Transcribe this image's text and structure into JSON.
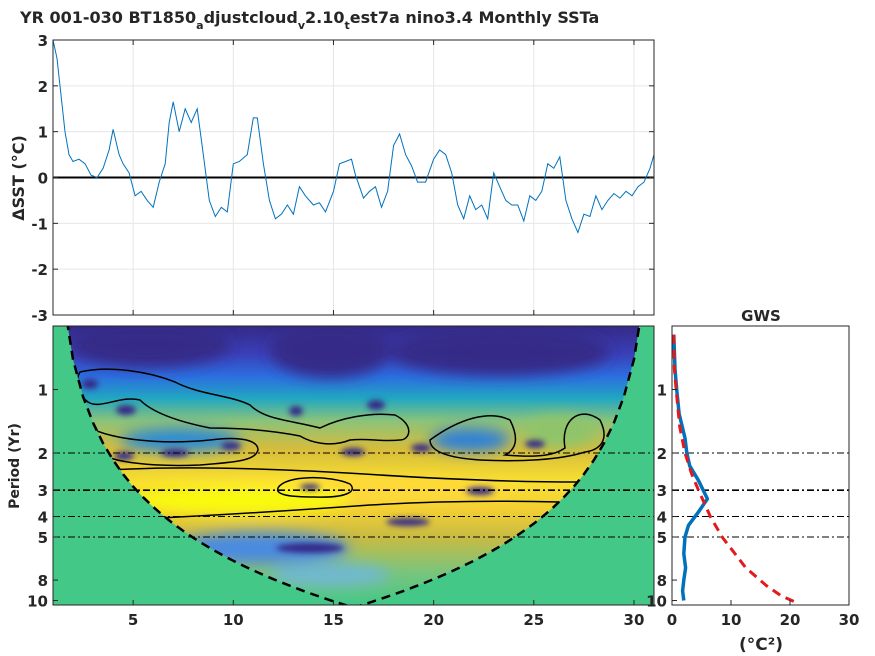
{
  "figure": {
    "title_parts": [
      "YR 001-030 BT1850",
      "a",
      "djustcloud",
      "v",
      "2.10",
      "t",
      "est7a nino3.4 Monthly SSTa"
    ]
  },
  "chart_data": [
    {
      "type": "line",
      "name": "timeseries",
      "ylabel": "ΔSST (°C)",
      "ylim": [
        -3,
        3
      ],
      "xlim": [
        1,
        31
      ],
      "yticks": [
        "-3",
        "-2",
        "-1",
        "0",
        "1",
        "2",
        "3"
      ],
      "xticks": [
        5,
        10,
        15,
        20,
        25,
        30
      ],
      "grid": true,
      "zero_line": true,
      "color": "#0072BD",
      "points": [
        [
          1.0,
          3.0
        ],
        [
          1.2,
          2.6
        ],
        [
          1.4,
          1.8
        ],
        [
          1.6,
          1.0
        ],
        [
          1.8,
          0.5
        ],
        [
          2.0,
          0.35
        ],
        [
          2.3,
          0.4
        ],
        [
          2.6,
          0.3
        ],
        [
          2.9,
          0.05
        ],
        [
          3.2,
          0.0
        ],
        [
          3.5,
          0.2
        ],
        [
          3.8,
          0.6
        ],
        [
          4.0,
          1.05
        ],
        [
          4.3,
          0.5
        ],
        [
          4.5,
          0.3
        ],
        [
          4.8,
          0.1
        ],
        [
          5.1,
          -0.4
        ],
        [
          5.4,
          -0.3
        ],
        [
          5.7,
          -0.5
        ],
        [
          6.0,
          -0.65
        ],
        [
          6.3,
          -0.1
        ],
        [
          6.6,
          0.3
        ],
        [
          6.8,
          1.2
        ],
        [
          7.0,
          1.65
        ],
        [
          7.3,
          1.0
        ],
        [
          7.6,
          1.5
        ],
        [
          7.9,
          1.2
        ],
        [
          8.2,
          1.5
        ],
        [
          8.5,
          0.5
        ],
        [
          8.8,
          -0.5
        ],
        [
          9.1,
          -0.85
        ],
        [
          9.4,
          -0.65
        ],
        [
          9.7,
          -0.75
        ],
        [
          10.0,
          0.3
        ],
        [
          10.3,
          0.35
        ],
        [
          10.7,
          0.5
        ],
        [
          11.0,
          1.3
        ],
        [
          11.2,
          1.3
        ],
        [
          11.5,
          0.3
        ],
        [
          11.8,
          -0.5
        ],
        [
          12.1,
          -0.9
        ],
        [
          12.4,
          -0.8
        ],
        [
          12.7,
          -0.6
        ],
        [
          13.0,
          -0.8
        ],
        [
          13.3,
          -0.2
        ],
        [
          13.6,
          -0.4
        ],
        [
          14.0,
          -0.6
        ],
        [
          14.3,
          -0.55
        ],
        [
          14.6,
          -0.75
        ],
        [
          15.0,
          -0.3
        ],
        [
          15.3,
          0.3
        ],
        [
          15.6,
          0.35
        ],
        [
          15.9,
          0.4
        ],
        [
          16.1,
          0.05
        ],
        [
          16.5,
          -0.45
        ],
        [
          16.8,
          -0.3
        ],
        [
          17.1,
          -0.2
        ],
        [
          17.4,
          -0.65
        ],
        [
          17.7,
          -0.3
        ],
        [
          18.0,
          0.7
        ],
        [
          18.3,
          0.95
        ],
        [
          18.6,
          0.5
        ],
        [
          18.9,
          0.25
        ],
        [
          19.2,
          -0.1
        ],
        [
          19.6,
          -0.1
        ],
        [
          20.0,
          0.4
        ],
        [
          20.3,
          0.6
        ],
        [
          20.6,
          0.5
        ],
        [
          20.9,
          0.1
        ],
        [
          21.2,
          -0.6
        ],
        [
          21.5,
          -0.9
        ],
        [
          21.8,
          -0.4
        ],
        [
          22.1,
          -0.7
        ],
        [
          22.4,
          -0.6
        ],
        [
          22.7,
          -0.9
        ],
        [
          23.0,
          0.1
        ],
        [
          23.3,
          -0.2
        ],
        [
          23.6,
          -0.5
        ],
        [
          23.9,
          -0.6
        ],
        [
          24.2,
          -0.6
        ],
        [
          24.5,
          -0.95
        ],
        [
          24.8,
          -0.4
        ],
        [
          25.1,
          -0.5
        ],
        [
          25.4,
          -0.3
        ],
        [
          25.7,
          0.3
        ],
        [
          26.0,
          0.2
        ],
        [
          26.3,
          0.45
        ],
        [
          26.6,
          -0.5
        ],
        [
          26.9,
          -0.9
        ],
        [
          27.2,
          -1.2
        ],
        [
          27.5,
          -0.8
        ],
        [
          27.8,
          -0.85
        ],
        [
          28.1,
          -0.4
        ],
        [
          28.4,
          -0.7
        ],
        [
          28.7,
          -0.5
        ],
        [
          29.0,
          -0.35
        ],
        [
          29.3,
          -0.45
        ],
        [
          29.6,
          -0.3
        ],
        [
          29.9,
          -0.4
        ],
        [
          30.2,
          -0.2
        ],
        [
          30.5,
          -0.1
        ],
        [
          30.8,
          0.2
        ],
        [
          31.0,
          0.5
        ]
      ]
    },
    {
      "type": "heatmap",
      "name": "wavelet-power",
      "ylabel": "Period (Yr)",
      "ylim": [
        0.5,
        10.5
      ],
      "xlim": [
        1,
        31
      ],
      "yscale": "log",
      "yticks": [
        1,
        2,
        3,
        4,
        5,
        8,
        10
      ],
      "xticks": [
        5,
        10,
        15,
        20,
        25,
        30
      ],
      "reference_periods": [
        2,
        3,
        4,
        5
      ],
      "colormap": [
        "#352a87",
        "#1f6de0",
        "#21a7c1",
        "#5cc08c",
        "#c7b940",
        "#f9d320",
        "#f9fb0e"
      ],
      "outside_coi_color": "#43c887"
    },
    {
      "type": "line",
      "name": "global-wavelet-spectrum",
      "title": "GWS",
      "xlabel": "(°C²)",
      "xlim": [
        0,
        30
      ],
      "ylim": [
        0.5,
        10.5
      ],
      "yscale": "log",
      "xticks": [
        0,
        10,
        20,
        30
      ],
      "yticks": [
        1,
        2,
        3,
        4,
        5,
        8,
        10
      ],
      "reference_periods": [
        2,
        3,
        4,
        5
      ],
      "series": [
        {
          "color": "#0072BD",
          "points": [
            [
              0.3,
              0.55
            ],
            [
              0.5,
              0.8
            ],
            [
              0.8,
              1.0
            ],
            [
              1.2,
              1.3
            ],
            [
              2.2,
              1.7
            ],
            [
              2.5,
              2.0
            ],
            [
              3.0,
              2.3
            ],
            [
              4.5,
              2.7
            ],
            [
              6.0,
              3.3
            ],
            [
              4.5,
              3.8
            ],
            [
              2.8,
              4.4
            ],
            [
              2.2,
              5.0
            ],
            [
              2.0,
              6.0
            ],
            [
              2.3,
              7.0
            ],
            [
              2.0,
              8.0
            ],
            [
              1.8,
              9.0
            ],
            [
              2.0,
              10.0
            ]
          ]
        },
        {
          "color": "#e31a1c",
          "dashed": true,
          "points": [
            [
              0.3,
              0.55
            ],
            [
              0.4,
              0.8
            ],
            [
              0.7,
              1.0
            ],
            [
              1.3,
              1.5
            ],
            [
              2.2,
              2.0
            ],
            [
              3.3,
              2.5
            ],
            [
              4.5,
              3.0
            ],
            [
              6.5,
              4.0
            ],
            [
              8.5,
              5.0
            ],
            [
              12.5,
              7.0
            ],
            [
              16.0,
              8.5
            ],
            [
              18.5,
              9.5
            ],
            [
              21.0,
              10.2
            ]
          ]
        }
      ]
    }
  ]
}
